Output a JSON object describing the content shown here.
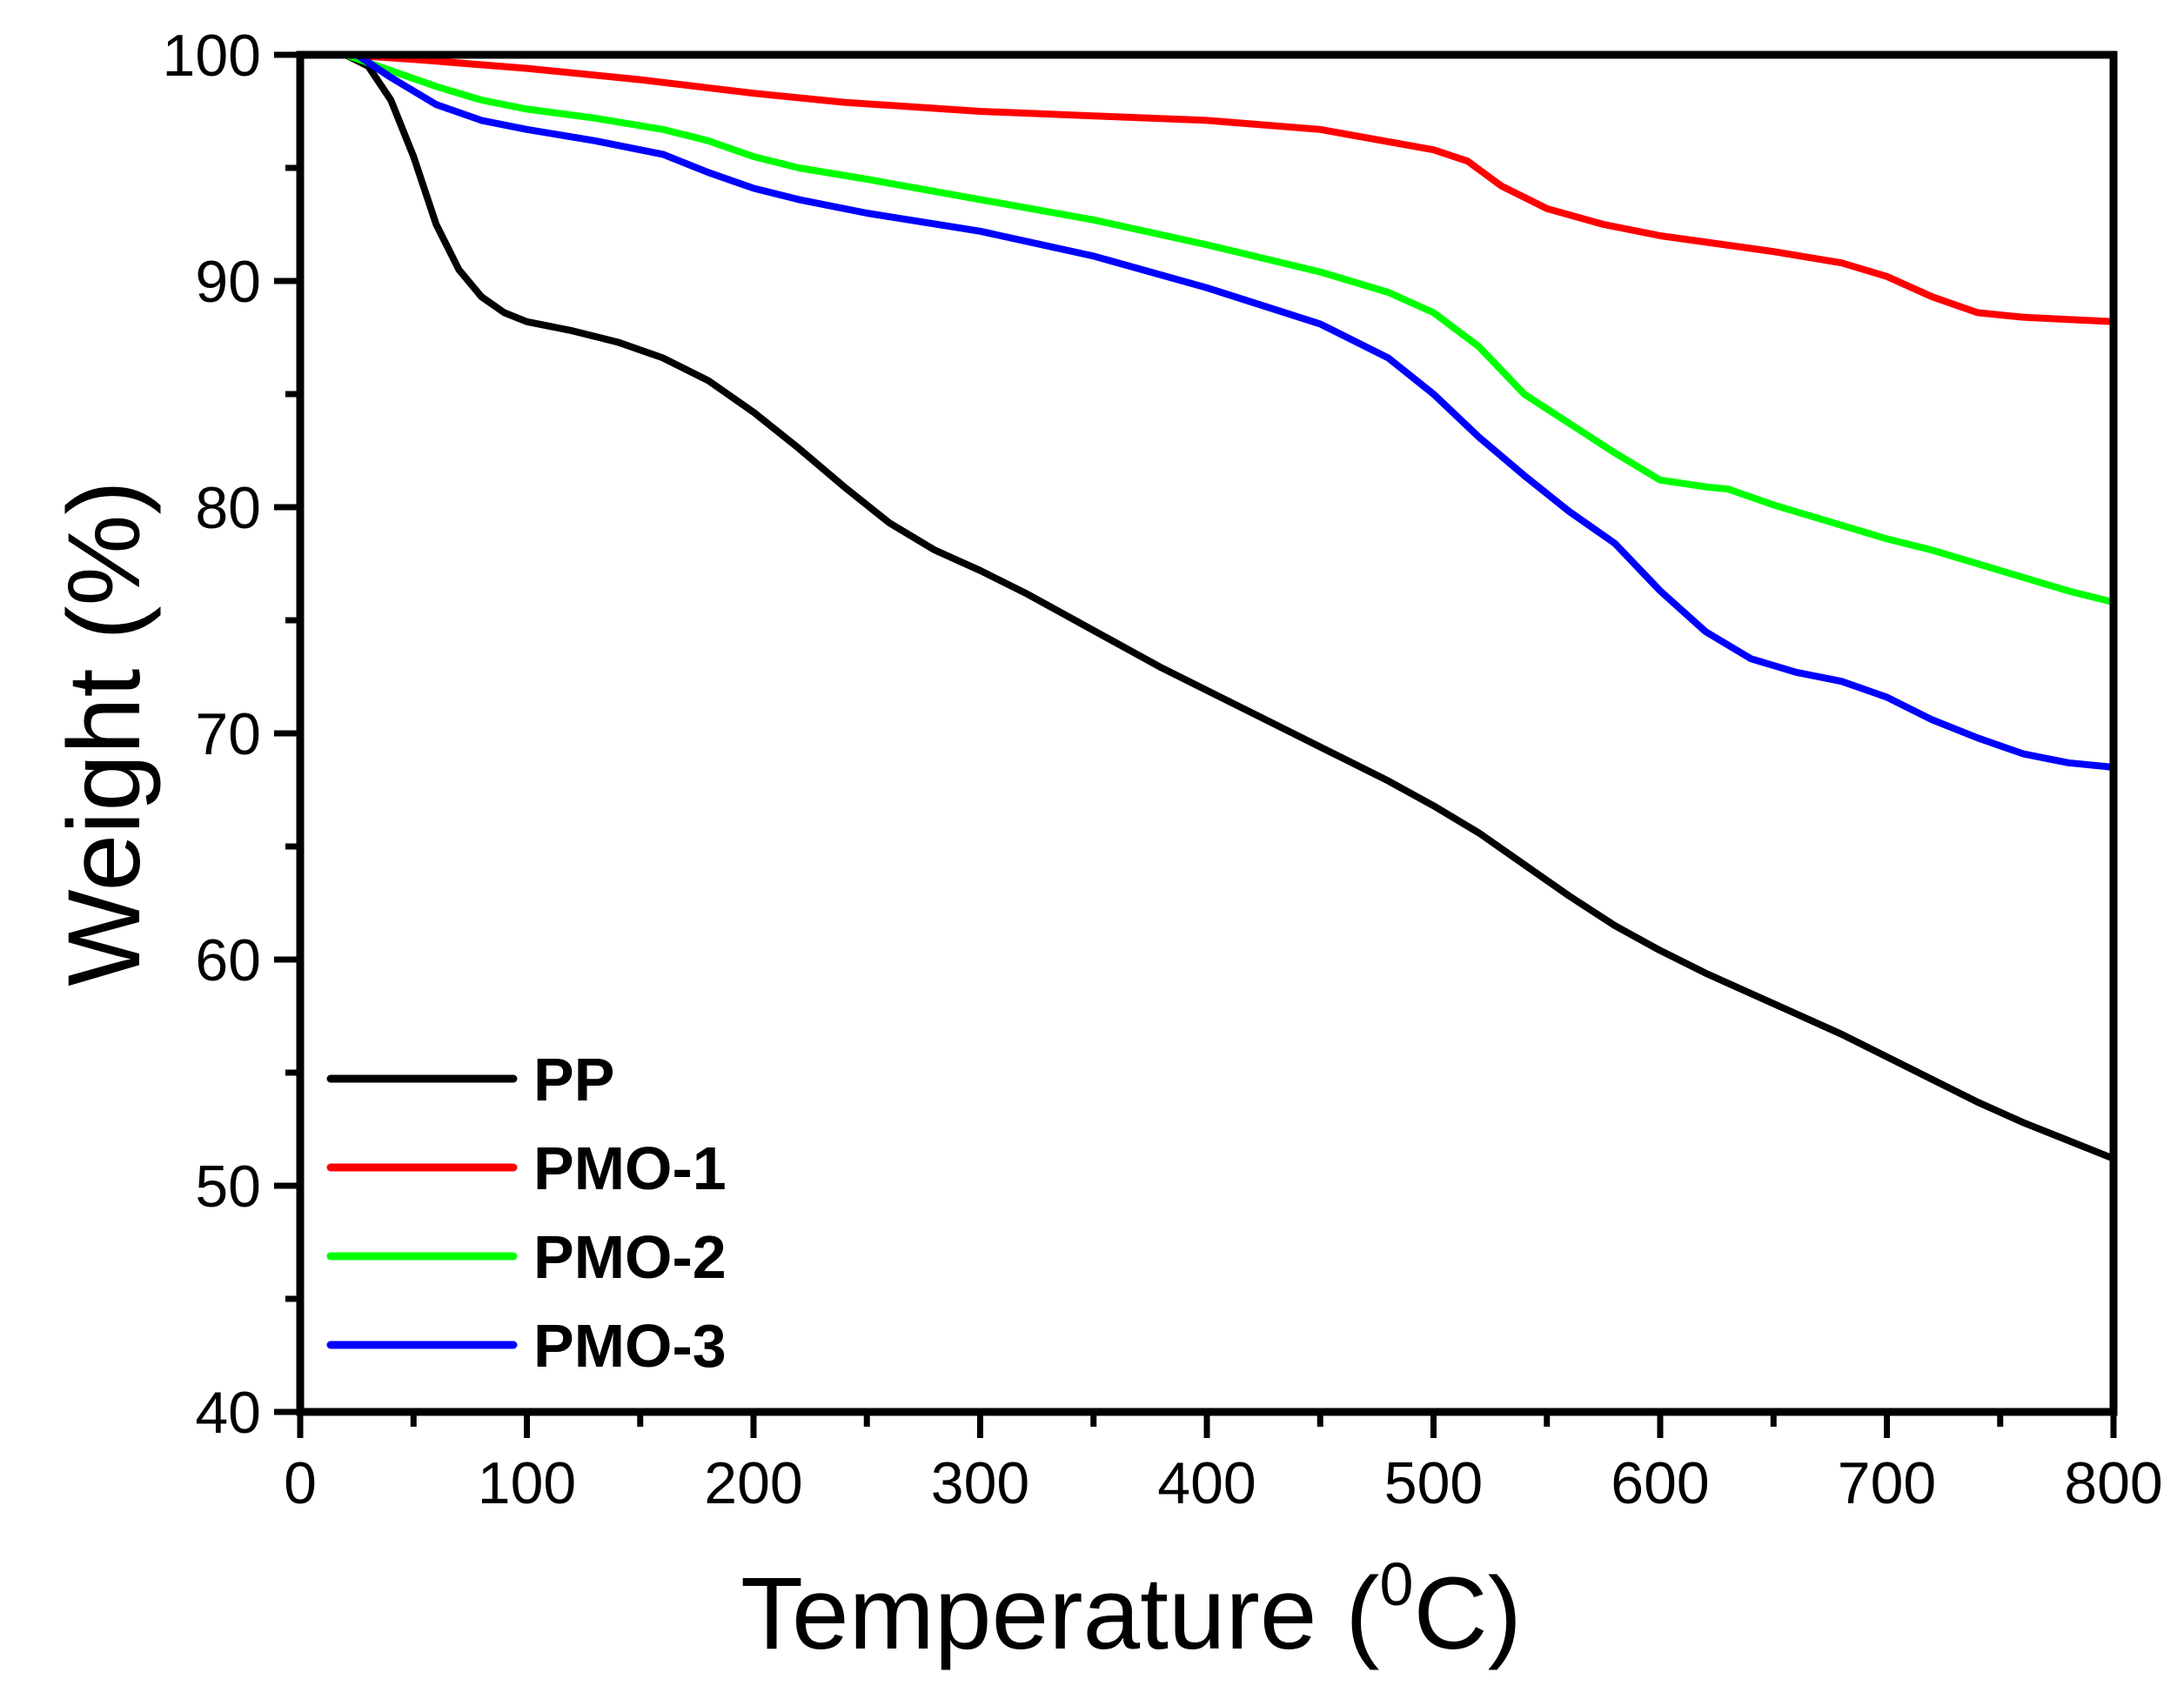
{
  "chart_data": {
    "type": "line",
    "title": "",
    "xlabel": "Temperature (0C)",
    "xlabel_main": "Temperature (",
    "xlabel_sup": "0",
    "xlabel_tail": "C)",
    "ylabel": "Weight (%)",
    "xlim": [
      0,
      800
    ],
    "ylim": [
      40,
      100
    ],
    "xticks": [
      0,
      100,
      200,
      300,
      400,
      500,
      600,
      700,
      800
    ],
    "yticks": [
      40,
      50,
      60,
      70,
      80,
      90,
      100
    ],
    "grid": false,
    "legend_position": "bottom-left",
    "series": [
      {
        "name": "PP",
        "color": "#000000",
        "x": [
          20,
          30,
          40,
          50,
          60,
          70,
          80,
          90,
          100,
          120,
          140,
          160,
          180,
          200,
          220,
          240,
          260,
          280,
          300,
          320,
          340,
          360,
          380,
          400,
          420,
          440,
          460,
          480,
          500,
          520,
          540,
          560,
          580,
          600,
          620,
          640,
          660,
          680,
          700,
          720,
          740,
          760,
          780,
          800
        ],
        "y": [
          100,
          99.5,
          98.0,
          95.5,
          92.5,
          90.5,
          89.3,
          88.6,
          88.2,
          87.8,
          87.3,
          86.6,
          85.6,
          84.2,
          82.6,
          80.9,
          79.3,
          78.1,
          77.2,
          76.2,
          75.1,
          74.0,
          72.9,
          71.9,
          70.9,
          69.9,
          68.9,
          67.9,
          66.8,
          65.6,
          64.2,
          62.8,
          61.5,
          60.4,
          59.4,
          58.5,
          57.6,
          56.7,
          55.7,
          54.7,
          53.7,
          52.8,
          52.0,
          51.2
        ]
      },
      {
        "name": "PMO-1",
        "color": "#ff0000",
        "x": [
          20,
          50,
          100,
          150,
          200,
          240,
          300,
          350,
          400,
          450,
          500,
          515,
          530,
          550,
          575,
          600,
          650,
          680,
          700,
          720,
          740,
          760,
          780,
          800
        ],
        "y": [
          100,
          99.8,
          99.4,
          98.9,
          98.3,
          97.9,
          97.5,
          97.3,
          97.1,
          96.7,
          95.8,
          95.3,
          94.2,
          93.2,
          92.5,
          92.0,
          91.3,
          90.8,
          90.2,
          89.3,
          88.6,
          88.4,
          88.3,
          88.2
        ]
      },
      {
        "name": "PMO-2",
        "color": "#00ff00",
        "x": [
          20,
          40,
          60,
          80,
          100,
          130,
          160,
          180,
          200,
          220,
          250,
          300,
          350,
          400,
          450,
          480,
          500,
          520,
          540,
          560,
          580,
          600,
          620,
          630,
          650,
          680,
          700,
          720,
          750,
          780,
          800
        ],
        "y": [
          100,
          99.3,
          98.6,
          98.0,
          97.6,
          97.2,
          96.7,
          96.2,
          95.5,
          95.0,
          94.5,
          93.6,
          92.7,
          91.6,
          90.4,
          89.5,
          88.6,
          87.1,
          85.0,
          83.7,
          82.4,
          81.2,
          80.9,
          80.8,
          80.1,
          79.2,
          78.6,
          78.1,
          77.2,
          76.3,
          75.8
        ]
      },
      {
        "name": "PMO-3",
        "color": "#0000ff",
        "x": [
          25,
          40,
          60,
          80,
          100,
          130,
          160,
          180,
          200,
          220,
          250,
          300,
          350,
          400,
          450,
          480,
          500,
          520,
          540,
          560,
          580,
          600,
          620,
          640,
          660,
          680,
          700,
          720,
          740,
          760,
          780,
          800
        ],
        "y": [
          100,
          99.0,
          97.8,
          97.1,
          96.7,
          96.2,
          95.6,
          94.8,
          94.1,
          93.6,
          93.0,
          92.2,
          91.1,
          89.7,
          88.1,
          86.6,
          85.0,
          83.1,
          81.4,
          79.8,
          78.4,
          76.3,
          74.5,
          73.3,
          72.7,
          72.3,
          71.6,
          70.6,
          69.8,
          69.1,
          68.7,
          68.5
        ]
      }
    ]
  }
}
